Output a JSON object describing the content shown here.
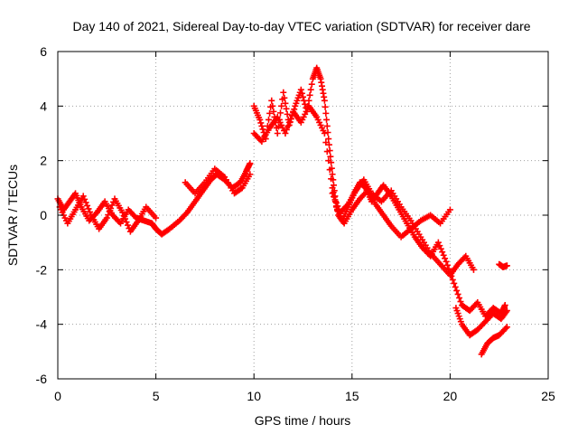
{
  "chart_data": {
    "type": "scatter",
    "title": "Day 140 of 2021, Sidereal Day-to-day VTEC variation (SDTVAR) for receiver dare",
    "xlabel": "GPS time / hours",
    "ylabel": "SDTVAR / TECUs",
    "xlim": [
      0,
      25
    ],
    "ylim": [
      -6,
      6
    ],
    "x_ticks": [
      0,
      5,
      10,
      15,
      20,
      25
    ],
    "x_tick_labels": [
      "0",
      "5",
      "10",
      "15",
      "20",
      "25"
    ],
    "y_ticks": [
      -6,
      -4,
      -2,
      0,
      2,
      4,
      6
    ],
    "y_tick_labels": [
      "-6",
      "-4",
      "-2",
      "0",
      "2",
      "4",
      "6"
    ],
    "grid": true,
    "marker": "+",
    "series_color": "#ff0000",
    "tracks": [
      {
        "name": "track-1",
        "x": [
          0.0,
          0.3,
          0.6,
          0.9,
          1.2,
          1.6,
          2.0,
          2.4,
          2.8,
          3.2,
          3.6,
          4.0,
          4.4,
          4.8,
          5.0,
          5.3,
          5.7,
          6.2,
          6.6,
          7.0,
          7.4,
          7.8,
          8.1,
          8.5,
          8.9,
          9.3,
          9.6,
          9.8
        ],
        "y": [
          0.6,
          0.2,
          0.5,
          0.8,
          0.3,
          -0.2,
          0.1,
          0.5,
          0.0,
          -0.3,
          0.2,
          -0.1,
          -0.2,
          -0.3,
          -0.5,
          -0.7,
          -0.5,
          -0.2,
          0.1,
          0.5,
          0.9,
          1.3,
          1.5,
          1.3,
          1.0,
          1.2,
          1.6,
          1.9
        ]
      },
      {
        "name": "track-2",
        "x": [
          0.1,
          0.5,
          0.9,
          1.3,
          1.7,
          2.1,
          2.5,
          2.9,
          3.3,
          3.7,
          4.1,
          4.5,
          5.0
        ],
        "y": [
          0.3,
          -0.3,
          0.2,
          0.7,
          0.0,
          -0.5,
          -0.1,
          0.6,
          0.1,
          -0.6,
          -0.2,
          0.3,
          -0.1
        ]
      },
      {
        "name": "track-3",
        "x": [
          6.5,
          7.0,
          7.5,
          8.0,
          8.5,
          9.0,
          9.4,
          9.8
        ],
        "y": [
          1.2,
          0.8,
          1.2,
          1.7,
          1.4,
          0.8,
          1.0,
          1.5
        ]
      },
      {
        "name": "track-4",
        "x": [
          10.0,
          10.3,
          10.6,
          10.9,
          11.2,
          11.5,
          11.8,
          12.1,
          12.4,
          12.7,
          13.0,
          13.2,
          13.4,
          13.6,
          13.8,
          14.0,
          14.2,
          14.5,
          14.8,
          15.1,
          15.4,
          15.7,
          16.0,
          16.3,
          16.6,
          17.0,
          17.4,
          17.8,
          18.2,
          18.6,
          19.0,
          19.4,
          19.8,
          20.2,
          20.6,
          21.0,
          21.4,
          21.8,
          22.2,
          22.6,
          22.8
        ],
        "y": [
          4.0,
          3.5,
          2.8,
          4.2,
          3.0,
          4.5,
          3.3,
          4.0,
          4.6,
          3.8,
          5.0,
          5.4,
          5.0,
          4.2,
          2.8,
          1.5,
          0.3,
          -0.2,
          0.3,
          0.8,
          1.2,
          1.0,
          0.5,
          0.8,
          1.1,
          0.7,
          0.2,
          -0.3,
          -0.8,
          -1.2,
          -1.5,
          -1.0,
          -1.7,
          -2.5,
          -3.3,
          -3.5,
          -3.2,
          -3.7,
          -3.4,
          -3.6,
          -3.3
        ]
      },
      {
        "name": "track-5",
        "x": [
          10.0,
          10.4,
          10.8,
          11.2,
          11.6,
          12.0,
          12.4,
          12.8,
          13.2,
          13.6,
          14.0,
          14.3,
          14.6,
          15.0,
          15.4,
          15.8,
          16.2,
          16.6,
          17.0,
          17.5,
          18.0,
          18.5,
          19.0,
          19.5,
          20.0
        ],
        "y": [
          3.0,
          2.7,
          3.2,
          3.6,
          3.0,
          3.8,
          3.4,
          4.0,
          3.6,
          3.0,
          1.0,
          0.0,
          -0.3,
          0.2,
          0.6,
          0.9,
          0.4,
          0.0,
          -0.4,
          -0.8,
          -0.5,
          -0.2,
          0.0,
          -0.3,
          0.2
        ]
      },
      {
        "name": "track-6",
        "x": [
          14.0,
          14.4,
          14.8,
          15.2,
          15.6,
          16.0,
          16.5,
          17.0,
          17.5,
          18.0,
          18.5,
          19.0,
          19.5,
          20.0,
          20.4,
          20.8,
          21.2
        ],
        "y": [
          0.8,
          0.1,
          0.4,
          0.9,
          1.3,
          0.8,
          0.5,
          0.9,
          0.3,
          -0.2,
          -0.8,
          -1.4,
          -1.8,
          -2.2,
          -1.8,
          -1.5,
          -2.0
        ]
      },
      {
        "name": "track-7",
        "x": [
          20.3,
          20.6,
          21.0,
          21.4,
          21.8,
          22.2,
          22.6,
          22.9
        ],
        "y": [
          -3.4,
          -4.0,
          -4.4,
          -4.2,
          -3.9,
          -3.6,
          -3.8,
          -3.5
        ]
      },
      {
        "name": "track-8",
        "x": [
          21.6,
          21.9,
          22.2,
          22.5,
          22.9
        ],
        "y": [
          -5.1,
          -4.7,
          -4.5,
          -4.4,
          -4.1
        ]
      },
      {
        "name": "track-9",
        "x": [
          22.5,
          22.7,
          22.9
        ],
        "y": [
          -1.8,
          -1.9,
          -1.85
        ]
      }
    ]
  }
}
